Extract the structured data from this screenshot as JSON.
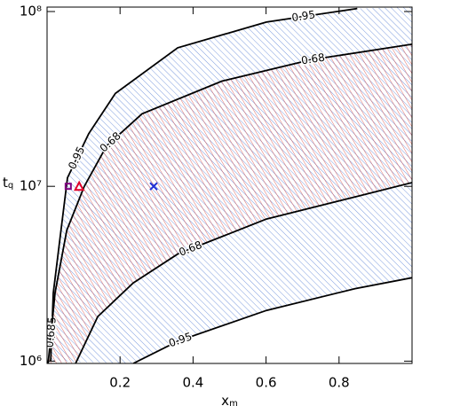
{
  "chart_data": {
    "type": "contour",
    "x_label": {
      "main": "x",
      "sub": "m"
    },
    "y_label": {
      "main": "t",
      "sub": "q"
    },
    "xlim": [
      0,
      1
    ],
    "ylim": [
      970000,
      106000000
    ],
    "log_y": true,
    "xticks": [
      0.2,
      0.4,
      0.6,
      0.8
    ],
    "yticks": [
      {
        "value": 1000000,
        "label": "10⁶"
      },
      {
        "value": 10000000,
        "label": "10⁷"
      },
      {
        "value": 100000000,
        "label": "10⁸"
      }
    ],
    "band_colors": [
      "#5b82d6",
      "#d9463f"
    ],
    "series": [
      {
        "name": "0.95",
        "color": "#000000",
        "x": [
          0.01,
          0.017,
          0.041,
          0.056,
          0.114,
          0.187,
          0.358,
          0.601,
          0.85
        ],
        "values": [
          1000000,
          2450000,
          6300000,
          11200000,
          20000000,
          34000000,
          62000000,
          87000000,
          104000000
        ]
      },
      {
        "name": "0.68",
        "color": "#000000",
        "x": [
          0.003,
          0.022,
          0.054,
          0.102,
          0.163,
          0.26,
          0.479,
          0.723,
          1.0
        ],
        "values": [
          970000,
          2460000,
          5600000,
          10000000,
          17000000,
          26000000,
          40000000,
          53000000,
          65000000
        ]
      },
      {
        "name": "0.68",
        "color": "#000000",
        "x": [
          0.078,
          0.139,
          0.236,
          0.358,
          0.601,
          0.844,
          1.0
        ],
        "values": [
          970000,
          1800000,
          2800000,
          4100000,
          6500000,
          8700000,
          10500000
        ]
      },
      {
        "name": "0.95",
        "color": "#000000",
        "x": [
          0.236,
          0.358,
          0.601,
          0.844,
          1.0
        ],
        "values": [
          970000,
          1300000,
          1950000,
          2600000,
          3000000
        ]
      }
    ],
    "points": [
      {
        "x": 0.058,
        "y": 10000000,
        "marker": "square",
        "color": "#800080"
      },
      {
        "x": 0.088,
        "y": 10000000,
        "marker": "triangle",
        "color": "#e0002a"
      },
      {
        "x": 0.292,
        "y": 10000000,
        "marker": "x",
        "color": "#1f2fd6"
      }
    ]
  }
}
